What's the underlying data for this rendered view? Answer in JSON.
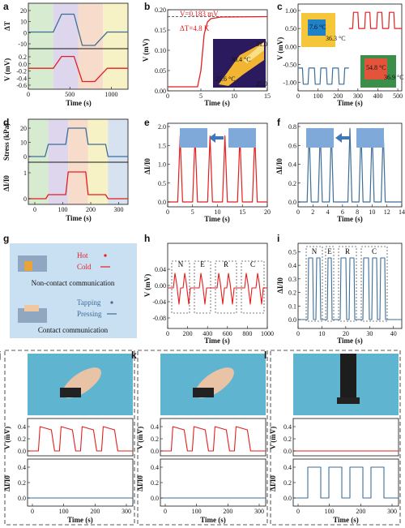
{
  "figure": {
    "panel_labels": [
      "a",
      "b",
      "c",
      "d",
      "e",
      "f",
      "g",
      "h",
      "i",
      "j",
      "k",
      "l"
    ],
    "colors": {
      "red": "#e41e1e",
      "blue": "#3c6e9a",
      "green_bg": "#d6ebcf",
      "purple_bg": "#ddd6ec",
      "orange_bg": "#f8dccb",
      "yellow_bg": "#f7f1c6",
      "blue_bg": "#d7e2f1",
      "photo_bg": "#5fb4cf"
    }
  },
  "chart_data": [
    {
      "panel": "a",
      "type": "line",
      "ylabel_top": "ΔT",
      "ylabel_bottom": "V (mV)",
      "xlabel": "Time (s)",
      "xlim": [
        0,
        1200
      ],
      "x_ticks": [
        0,
        500,
        1000
      ],
      "top_y_ticks": [
        "20",
        "10",
        "0",
        "-10"
      ],
      "bottom_y_ticks": [
        "0.2",
        "0.0",
        "-0.2",
        "-0.4",
        "-0.6"
      ],
      "top_series": {
        "x": [
          0,
          300,
          400,
          550,
          650,
          800,
          950,
          1200
        ],
        "y": [
          0,
          0,
          16,
          16,
          -12,
          -12,
          0,
          0
        ]
      },
      "bottom_series": {
        "x": [
          0,
          300,
          400,
          550,
          650,
          800,
          950,
          1200
        ],
        "y": [
          0,
          0,
          0.4,
          0.4,
          -0.45,
          -0.45,
          0,
          0
        ]
      }
    },
    {
      "panel": "b",
      "type": "line",
      "xlabel": "Time (s)",
      "ylabel": "V (mV)",
      "xlim": [
        0,
        15
      ],
      "ylim": [
        0,
        0.2
      ],
      "x_ticks": [
        "0",
        "5",
        "10",
        "15"
      ],
      "y_ticks": [
        "0.00",
        "0.05",
        "0.10",
        "0.15",
        "0.20"
      ],
      "annotations": [
        "V=0.183 mV",
        "ΔT=4.8 K"
      ],
      "inset_labels": [
        "30.4 °C",
        "25.6 °C",
        "31.0",
        "25.0"
      ],
      "series": {
        "x": [
          0,
          4.5,
          5,
          5.5,
          6,
          6.5,
          8,
          15
        ],
        "y": [
          0.01,
          0.01,
          0.05,
          0.14,
          0.17,
          0.178,
          0.182,
          0.183
        ]
      }
    },
    {
      "panel": "c",
      "type": "line",
      "xlabel": "Time (s)",
      "ylabel": "V (mV)",
      "xlim": [
        0,
        500
      ],
      "ylim": [
        -1.2,
        1.2
      ],
      "x_ticks": [
        "0",
        "100",
        "200",
        "300",
        "400",
        "500"
      ],
      "y_ticks": [
        "1.00",
        "0.50",
        "0.00",
        "-0.50",
        "-1.00"
      ],
      "inset_labels": [
        "7.6 °C",
        "36.3 °C",
        "54.8 °C",
        "36.9 °C"
      ]
    },
    {
      "panel": "d",
      "type": "line",
      "ylabel_top": "Stress (kPa)",
      "ylabel_bottom": "ΔI/I0",
      "xlabel": "Time (s)",
      "x_ticks": [
        "0",
        "100",
        "200",
        "300"
      ],
      "top_y_ticks": [
        "20",
        "10",
        "0"
      ],
      "bottom_y_ticks": [
        "1",
        "0"
      ]
    },
    {
      "panel": "e",
      "type": "line",
      "xlabel": "Time (s)",
      "ylabel": "ΔI/I0",
      "x_ticks": [
        "0",
        "5",
        "10",
        "15",
        "20"
      ],
      "y_ticks": [
        "0.0",
        "0.5",
        "1.0",
        "1.5",
        "2.0"
      ],
      "peaks_x": [
        2.5,
        5.5,
        8.5,
        11.5,
        14.5,
        17.5
      ],
      "peak_y": 1.75
    },
    {
      "panel": "f",
      "type": "line",
      "xlabel": "Time (s)",
      "ylabel": "ΔI/I0",
      "x_ticks": [
        "0",
        "2",
        "4",
        "6",
        "8",
        "10",
        "12",
        "14"
      ],
      "y_ticks": [
        "0.0",
        "0.2",
        "0.4",
        "0.6",
        "0.8"
      ],
      "peaks_x": [
        1.5,
        3,
        4.5,
        7,
        8.5,
        10,
        11.5
      ],
      "peak_y": 0.78
    },
    {
      "panel": "h",
      "type": "line",
      "xlabel": "Time (s)",
      "ylabel": "V (mV)",
      "x_ticks": [
        "0",
        "200",
        "400",
        "600",
        "800",
        "1000"
      ],
      "y_ticks": [
        "0.04",
        "0.00",
        "-0.04",
        "-0.08"
      ],
      "letters": [
        "N",
        "E",
        "R",
        "C"
      ]
    },
    {
      "panel": "i",
      "type": "line",
      "xlabel": "Time (s)",
      "ylabel": "ΔI/I0",
      "x_ticks": [
        "0",
        "10",
        "20",
        "30",
        "40"
      ],
      "y_ticks": [
        "0.0",
        "0.1",
        "0.2",
        "0.3",
        "0.4",
        "0.5"
      ],
      "letters": [
        "N",
        "E",
        "R",
        "C"
      ]
    },
    {
      "panel": "j",
      "type": "line",
      "xlabel": "Time (s)",
      "ylabel_top": "V (mV)",
      "ylabel_bottom": "ΔI/I0",
      "x_ticks": [
        "0",
        "100",
        "200",
        "300"
      ]
    },
    {
      "panel": "k",
      "type": "line",
      "xlabel": "Time (s)",
      "ylabel_top": "V (mV)",
      "ylabel_bottom": "ΔI/I0",
      "x_ticks": [
        "0",
        "100",
        "200",
        "300"
      ]
    },
    {
      "panel": "l",
      "type": "line",
      "xlabel": "Time (s)",
      "ylabel_top": "V (mV)",
      "ylabel_bottom": "ΔI/I0",
      "x_ticks": [
        "0",
        "100",
        "200",
        "300"
      ]
    }
  ],
  "legend_g": {
    "hot": "Hot",
    "cold": "Cold",
    "noncontact": "Non-contact communication",
    "tapping": "Tapping",
    "pressing": "Pressing",
    "contact": "Contact communication"
  }
}
